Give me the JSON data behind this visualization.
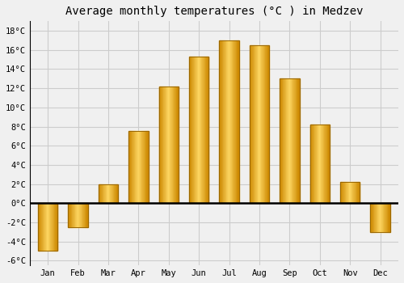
{
  "title": "Average monthly temperatures (°C ) in Medzev",
  "months": [
    "Jan",
    "Feb",
    "Mar",
    "Apr",
    "May",
    "Jun",
    "Jul",
    "Aug",
    "Sep",
    "Oct",
    "Nov",
    "Dec"
  ],
  "values": [
    -5.0,
    -2.5,
    2.0,
    7.5,
    12.2,
    15.3,
    17.0,
    16.5,
    13.0,
    8.2,
    2.2,
    -3.0
  ],
  "bar_color_light": "#FFD966",
  "bar_color_main": "#FFA500",
  "bar_color_dark": "#CC8800",
  "bar_edge_color": "#996600",
  "background_color": "#f0f0f0",
  "plot_bg_color": "#f0f0f0",
  "grid_color": "#cccccc",
  "ylim": [
    -6.5,
    19
  ],
  "yticks": [
    -6,
    -4,
    -2,
    0,
    2,
    4,
    6,
    8,
    10,
    12,
    14,
    16,
    18
  ],
  "ytick_labels": [
    "-6°C",
    "-4°C",
    "-2°C",
    "0°C",
    "2°C",
    "4°C",
    "6°C",
    "8°C",
    "10°C",
    "12°C",
    "14°C",
    "16°C",
    "18°C"
  ],
  "title_fontsize": 10,
  "tick_fontsize": 7.5,
  "font_family": "monospace"
}
